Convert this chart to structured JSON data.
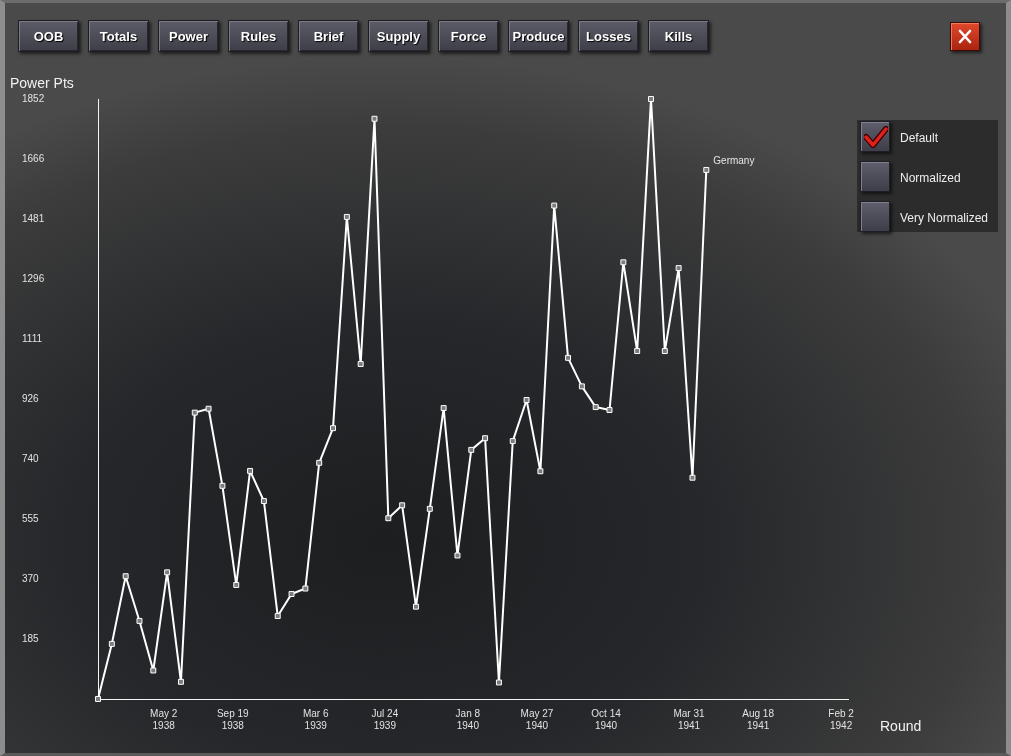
{
  "chart_data": {
    "type": "line",
    "xlabel": "Round",
    "ylabel": "Power Pts",
    "annotations": [
      "OOB",
      "Totals",
      "Power",
      "Rules",
      "Brief",
      "Supply",
      "Force",
      "Produce",
      "Losses",
      "Kills",
      "Default",
      "Normalized",
      "Very Normalized"
    ],
    "x": [
      "1937-12-20",
      "1938-01-17",
      "1938-02-14",
      "1938-03-14",
      "1938-04-11",
      "1938-05-09",
      "1938-06-06",
      "1938-07-04",
      "1938-08-01",
      "1938-08-29",
      "1938-09-26",
      "1938-10-24",
      "1938-11-21",
      "1938-12-19",
      "1939-01-16",
      "1939-02-13",
      "1939-03-13",
      "1939-04-10",
      "1939-05-08",
      "1939-06-05",
      "1939-07-03",
      "1939-07-31",
      "1939-08-28",
      "1939-09-25",
      "1939-10-23",
      "1939-11-20",
      "1939-12-18",
      "1940-01-15",
      "1940-02-12",
      "1940-03-11",
      "1940-04-08",
      "1940-05-06",
      "1940-06-03",
      "1940-07-01",
      "1940-07-29",
      "1940-08-26",
      "1940-09-23",
      "1940-10-21",
      "1940-11-18",
      "1940-12-16",
      "1941-01-13",
      "1941-02-10",
      "1941-03-10",
      "1941-04-07",
      "1941-05-05"
    ],
    "series": [
      {
        "name": "Germany",
        "color": "#ffffff",
        "values": [
          0,
          170,
          379,
          241,
          88,
          391,
          53,
          884,
          896,
          658,
          352,
          704,
          611,
          256,
          324,
          341,
          729,
          836,
          1488,
          1034,
          1791,
          558,
          598,
          285,
          587,
          898,
          443,
          769,
          805,
          51,
          796,
          923,
          703,
          1523,
          1053,
          965,
          901,
          892,
          1348,
          1074,
          1852,
          1074,
          1330,
          683,
          1633
        ]
      }
    ],
    "xlim": [
      "1937-12-20",
      "1942-02-16"
    ],
    "xticks": [
      {
        "value": "1938-05-02",
        "label": "May 2 1938"
      },
      {
        "value": "1938-09-19",
        "label": "Sep 19 1938"
      },
      {
        "value": "1939-03-06",
        "label": "Mar 6 1939"
      },
      {
        "value": "1939-07-24",
        "label": "Jul 24 1939"
      },
      {
        "value": "1940-01-08",
        "label": "Jan 8 1940"
      },
      {
        "value": "1940-05-27",
        "label": "May 27 1940"
      },
      {
        "value": "1940-10-14",
        "label": "Oct 14 1940"
      },
      {
        "value": "1941-03-31",
        "label": "Mar 31 1941"
      },
      {
        "value": "1941-08-18",
        "label": "Aug 18 1941"
      },
      {
        "value": "1942-02-02",
        "label": "Feb 2 1942"
      }
    ],
    "ylim": [
      0,
      1852
    ],
    "yticks": [
      185,
      370,
      555,
      740,
      926,
      1111,
      1296,
      1481,
      1666,
      1852
    ],
    "marker": "square",
    "line_style": "solid"
  }
}
